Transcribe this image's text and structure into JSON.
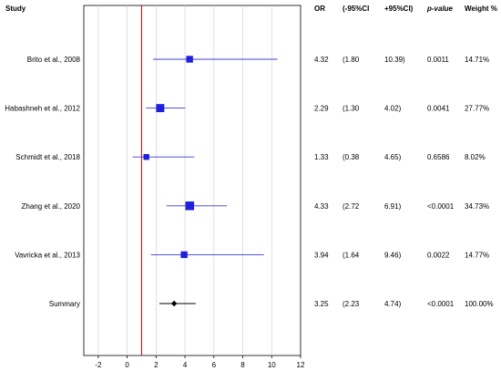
{
  "chart_data": {
    "type": "forest",
    "columns": {
      "study": "Study",
      "or": "OR",
      "lower": "(-95%CI",
      "upper": "+95%CI)",
      "p": "p-value",
      "weight": "Weight %"
    },
    "xlim": [
      -3,
      12
    ],
    "xticks": [
      "-2",
      "0",
      "2",
      "4",
      "6",
      "8",
      "10",
      "12"
    ],
    "null_line": 1,
    "colors": {
      "ci": "#3b3bd6",
      "marker": "#1f1fdc",
      "summary": "#000000",
      "null_line": "#cc0000",
      "grid": "#cccccc"
    },
    "studies": [
      {
        "name": "Brito et al., 2008",
        "or": 4.32,
        "lower": 1.8,
        "upper": 10.39,
        "or_text": "4.32",
        "lower_text": "(1.80",
        "upper_text": "10.39)",
        "p": "0.0011",
        "weight": "14.71%",
        "weight_value": 14.71
      },
      {
        "name": "Habashneh et al., 2012",
        "or": 2.29,
        "lower": 1.3,
        "upper": 4.02,
        "or_text": "2.29",
        "lower_text": "(1.30",
        "upper_text": "4.02)",
        "p": "0.0041",
        "weight": "27.77%",
        "weight_value": 27.77
      },
      {
        "name": "Schmidt et al., 2018",
        "or": 1.33,
        "lower": 0.38,
        "upper": 4.65,
        "or_text": "1.33",
        "lower_text": "(0.38",
        "upper_text": "4.65)",
        "p": "0.6586",
        "weight": "8.02%",
        "weight_value": 8.02
      },
      {
        "name": "Zhang et al., 2020",
        "or": 4.33,
        "lower": 2.72,
        "upper": 6.91,
        "or_text": "4.33",
        "lower_text": "(2.72",
        "upper_text": "6.91)",
        "p": "<0.0001",
        "weight": "34.73%",
        "weight_value": 34.73
      },
      {
        "name": "Vavricka et al., 2013",
        "or": 3.94,
        "lower": 1.64,
        "upper": 9.46,
        "or_text": "3.94",
        "lower_text": "(1.64",
        "upper_text": "9.46)",
        "p": "0.0022",
        "weight": "14.77%",
        "weight_value": 14.77
      }
    ],
    "summary": {
      "name": "Summary",
      "or": 3.25,
      "lower": 2.23,
      "upper": 4.74,
      "or_text": "3.25",
      "lower_text": "(2.23",
      "upper_text": "4.74)",
      "p": "<0.0001",
      "weight": "100.00%"
    }
  }
}
